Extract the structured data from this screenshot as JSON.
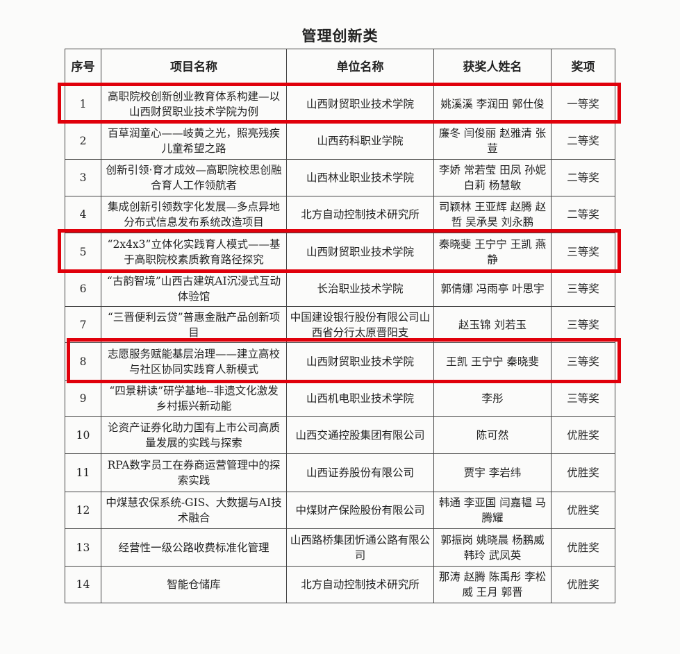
{
  "title": "管理创新类",
  "headers": [
    "序号",
    "项目名称",
    "单位名称",
    "获奖人姓名",
    "奖项"
  ],
  "rows": [
    {
      "no": "1",
      "project": "高职院校创新创业教育体系构建—以山西财贸职业技术学院为例",
      "unit": "山西财贸职业技术学院",
      "winners": "姚溪溪 李润田 郭仕俊",
      "award": "一等奖",
      "highlighted": true
    },
    {
      "no": "2",
      "project": "百草润童心——岐黄之光，照亮残疾儿童希望之路",
      "unit": "山西药科职业学院",
      "winners": "廉冬 闫俊丽 赵雅清 张荳",
      "award": "二等奖",
      "highlighted": false
    },
    {
      "no": "3",
      "project": "创新引领·育才成效—高职院校思创融合育人工作领航者",
      "unit": "山西林业职业技术学院",
      "winners": "李娇 常若莹 田凤 孙妮 白莉 杨慧敏",
      "award": "二等奖",
      "highlighted": false
    },
    {
      "no": "4",
      "project": "集成创新引领数字化发展—多点异地分布式信息发布系统改造项目",
      "unit": "北方自动控制技术研究所",
      "winners": "司颖林 王亚辉 赵腾 赵哲 吴承昊 刘永鹏",
      "award": "二等奖",
      "highlighted": false
    },
    {
      "no": "5",
      "project": "“2x4x3”立体化实践育人模式——基于高职院校素质教育路径探究",
      "unit": "山西财贸职业技术学院",
      "winners": "秦晓斐 王宁宁 王凯 燕静",
      "award": "三等奖",
      "highlighted": true
    },
    {
      "no": "6",
      "project": "“古韵智境”山西古建筑AI沉浸式互动体验馆",
      "unit": "长治职业技术学院",
      "winners": "郭倩娜 冯雨亭 叶思宇",
      "award": "三等奖",
      "highlighted": false
    },
    {
      "no": "7",
      "project": "“三晋便利云贷”普惠金融产品创新项目",
      "unit": "中国建设银行股份有限公司山西省分行太原晋阳支",
      "winners": "赵玉锦 刘若玉",
      "award": "三等奖",
      "highlighted": false
    },
    {
      "no": "8",
      "project": "志愿服务赋能基层治理——建立高校与社区协同实践育人新模式",
      "unit": "山西财贸职业技术学院",
      "winners": "王凯 王宁宁 秦晓斐",
      "award": "三等奖",
      "highlighted": true
    },
    {
      "no": "9",
      "project": "“四景耕读”研学基地--非遗文化激发乡村振兴新动能",
      "unit": "山西机电职业技术学院",
      "winners": "李彤",
      "award": "三等奖",
      "highlighted": false
    },
    {
      "no": "10",
      "project": "论资产证券化助力国有上市公司高质量发展的实践与探索",
      "unit": "山西交通控股集团有限公司",
      "winners": "陈可然",
      "award": "优胜奖",
      "highlighted": false
    },
    {
      "no": "11",
      "project": "RPA数字员工在券商运营管理中的探索实践",
      "unit": "山西证券股份有限公司",
      "winners": "贾宇 李岩纬",
      "award": "优胜奖",
      "highlighted": false
    },
    {
      "no": "12",
      "project": "中煤慧农保系统-GIS、大数据与AI技术融合",
      "unit": "中煤财产保险股份有限公司",
      "winners": "韩通 李亚国 闫嘉韫 马腾耀",
      "award": "优胜奖",
      "highlighted": false
    },
    {
      "no": "13",
      "project": "经营性一级公路收费标准化管理",
      "unit": "山西路桥集团忻通公路有限公司",
      "winners": "郭振岗 姚晓晨 杨鹏威 韩玲 武凤英",
      "award": "优胜奖",
      "highlighted": false
    },
    {
      "no": "14",
      "project": "智能仓储库",
      "unit": "北方自动控制技术研究所",
      "winners": "那涛 赵腾 陈禹彤 李松威 王月 郭晋",
      "award": "优胜奖",
      "highlighted": false
    }
  ],
  "highlight_color": "#e0000b"
}
